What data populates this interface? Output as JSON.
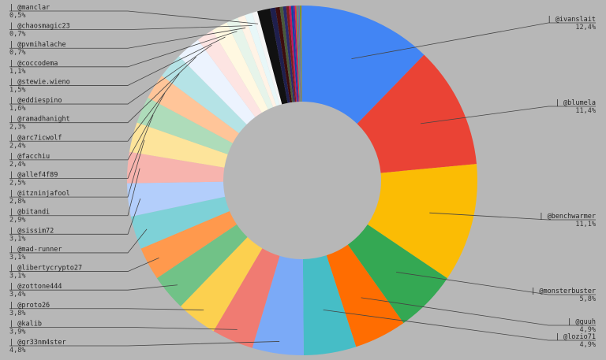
{
  "chart_data": {
    "type": "pie",
    "title": "",
    "legend": "none",
    "slices": [
      {
        "label": "@ivanslait",
        "pct_label": "12,4%",
        "value": 12.4,
        "color": "#4285f4",
        "label_side": "right"
      },
      {
        "label": "@blumela",
        "pct_label": "11,4%",
        "value": 11.4,
        "color": "#ea4335",
        "label_side": "right"
      },
      {
        "label": "@benchwarmer",
        "pct_label": "11,1%",
        "value": 11.1,
        "color": "#fbbc04",
        "label_side": "right"
      },
      {
        "label": "@monsterbuster",
        "pct_label": "5,8%",
        "value": 5.8,
        "color": "#34a853",
        "label_side": "right"
      },
      {
        "label": "@guuh",
        "pct_label": "4,9%",
        "value": 4.9,
        "color": "#ff6d01",
        "label_side": "right"
      },
      {
        "label": "@lozio71",
        "pct_label": "4,9%",
        "value": 4.9,
        "color": "#46bdc6",
        "label_side": "right"
      },
      {
        "label": "@gr33nm4ster",
        "pct_label": "4,8%",
        "value": 4.8,
        "color": "#7baaf7",
        "label_side": "left"
      },
      {
        "label": "@kalib",
        "pct_label": "3,9%",
        "value": 3.9,
        "color": "#f07b72",
        "label_side": "left"
      },
      {
        "label": "@proto26",
        "pct_label": "3,8%",
        "value": 3.8,
        "color": "#fcd04f",
        "label_side": "left"
      },
      {
        "label": "@zottone444",
        "pct_label": "3,4%",
        "value": 3.4,
        "color": "#71c287",
        "label_side": "left"
      },
      {
        "label": "@libertycrypto27",
        "pct_label": "3,1%",
        "value": 3.1,
        "color": "#ff994d",
        "label_side": "left"
      },
      {
        "label": "@mad-runner",
        "pct_label": "3,1%",
        "value": 3.1,
        "color": "#7ed1d7",
        "label_side": "left"
      },
      {
        "label": "@sissim72",
        "pct_label": "3,1%",
        "value": 3.1,
        "color": "#b3cefb",
        "label_side": "left"
      },
      {
        "label": "@bitandi",
        "pct_label": "2,9%",
        "value": 2.9,
        "color": "#f7b4ae",
        "label_side": "left"
      },
      {
        "label": "@itzninjafool",
        "pct_label": "2,8%",
        "value": 2.8,
        "color": "#fde49b",
        "label_side": "left"
      },
      {
        "label": "@allef4f89",
        "pct_label": "2,5%",
        "value": 2.5,
        "color": "#aedcba",
        "label_side": "left"
      },
      {
        "label": "@facchiu",
        "pct_label": "2,4%",
        "value": 2.4,
        "color": "#ffc599",
        "label_side": "left"
      },
      {
        "label": "@arc7icwolf",
        "pct_label": "2,4%",
        "value": 2.4,
        "color": "#b5e3e6",
        "label_side": "left"
      },
      {
        "label": "@ramadhanight",
        "pct_label": "2,3%",
        "value": 2.3,
        "color": "#ecf3fe",
        "label_side": "left"
      },
      {
        "label": "@eddiespino",
        "pct_label": "1,6%",
        "value": 1.6,
        "color": "#fde4e2",
        "label_side": "left"
      },
      {
        "label": "@stewie.wieno",
        "pct_label": "1,5%",
        "value": 1.5,
        "color": "#fff8e1",
        "label_side": "left"
      },
      {
        "label": "@coccodema",
        "pct_label": "1,1%",
        "value": 1.1,
        "color": "#e6f4ea",
        "label_side": "left"
      },
      {
        "label": "@pvmihalache",
        "pct_label": "0,7%",
        "value": 0.7,
        "color": "#fff3e6",
        "label_side": "left"
      },
      {
        "label": "@chaosmagic23",
        "pct_label": "0,7%",
        "value": 0.7,
        "color": "#e8f7f8",
        "label_side": "left"
      },
      {
        "label": "@manclar",
        "pct_label": "0,5%",
        "value": 0.5,
        "color": "#f5f5f5",
        "label_side": "left"
      }
    ],
    "unlabeled_slices": [
      {
        "value": 1.2,
        "color": "#111111"
      },
      {
        "value": 0.5,
        "color": "#1f1f4d"
      },
      {
        "value": 0.4,
        "color": "#3d0d0d"
      },
      {
        "value": 0.3,
        "color": "#4a5a3a"
      },
      {
        "value": 0.3,
        "color": "#2b2b6b"
      },
      {
        "value": 0.25,
        "color": "#7a1f1f"
      },
      {
        "value": 0.2,
        "color": "#c2185b"
      },
      {
        "value": 0.2,
        "color": "#0d47a1"
      },
      {
        "value": 0.15,
        "color": "#6a1b9a"
      },
      {
        "value": 0.15,
        "color": "#e53935"
      },
      {
        "value": 0.1,
        "color": "#26a69a"
      },
      {
        "value": 0.1,
        "color": "#8d6e63"
      },
      {
        "value": 0.1,
        "color": "#5c6bc0"
      },
      {
        "value": 0.08,
        "color": "#43a047"
      },
      {
        "value": 0.08,
        "color": "#f57c00"
      },
      {
        "value": 0.07,
        "color": "#1e88e5"
      }
    ]
  }
}
